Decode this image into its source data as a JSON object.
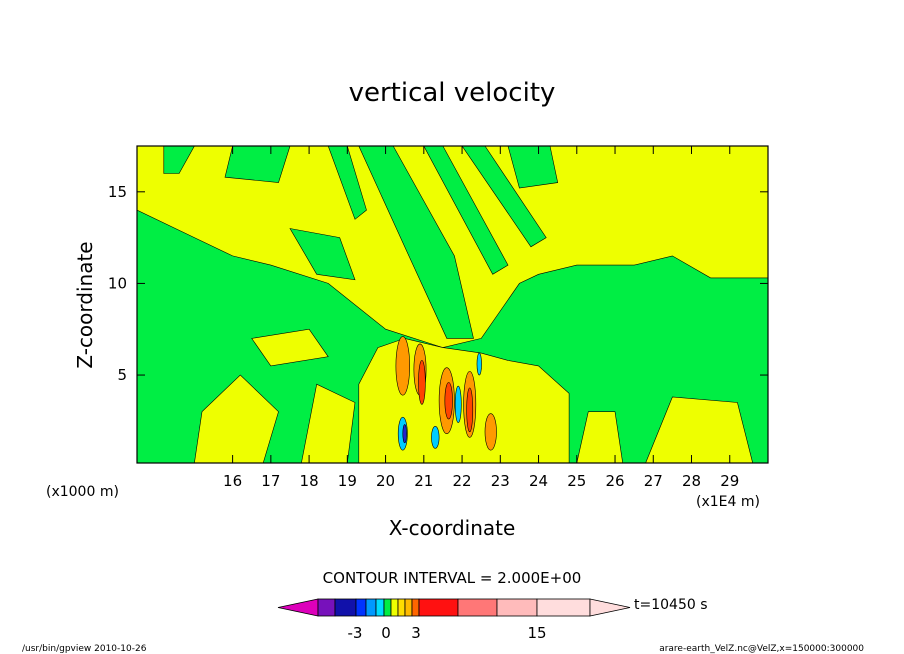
{
  "chart_data": {
    "type": "heatmap",
    "title": "vertical velocity",
    "xlabel": "X-coordinate",
    "ylabel": "Z-coordinate",
    "x_range": [
      13.5,
      30
    ],
    "y_range": [
      0.2,
      17.5
    ],
    "x_ticks": [
      16,
      17,
      18,
      19,
      20,
      21,
      22,
      23,
      24,
      25,
      26,
      27,
      28,
      29
    ],
    "y_ticks": [
      5,
      10,
      15
    ],
    "x_tick_labels": [
      "16",
      "17",
      "18",
      "19",
      "20",
      "21",
      "22",
      "23",
      "24",
      "25",
      "26",
      "27",
      "28",
      "29"
    ],
    "y_tick_labels": [
      "5",
      "10",
      "15"
    ],
    "x_unit_left": "(x1000 m)",
    "x_unit_right": "(x1E4 m)",
    "contour_interval_text": "CONTOUR INTERVAL = 2.000E+00",
    "time_label": "t=10450 s",
    "colorbar": {
      "levels": [
        -15,
        -3,
        0,
        3,
        15
      ],
      "tick_labels": [
        "-3",
        "0",
        "3",
        "15"
      ],
      "colors": [
        "#dd00bb",
        "#7711bb",
        "#1111aa",
        "#0033ff",
        "#0099ff",
        "#00ddff",
        "#00ee44",
        "#eeff00",
        "#ffdd00",
        "#ffbb00",
        "#ff6600",
        "#ff1111",
        "#ff7777",
        "#ffbbbb",
        "#ffdddd"
      ]
    },
    "field_colors": {
      "background_level": "#eeff00",
      "neutral_low": "#00ee44",
      "positive": "#ff9900",
      "positive_strong": "#ff4400",
      "negative": "#00ccff",
      "negative_strong": "#2222cc"
    }
  },
  "footer": {
    "left": "/usr/bin/gpview   2010-10-26",
    "right": "arare-earth_VelZ.nc@VelZ,x=150000:300000"
  }
}
